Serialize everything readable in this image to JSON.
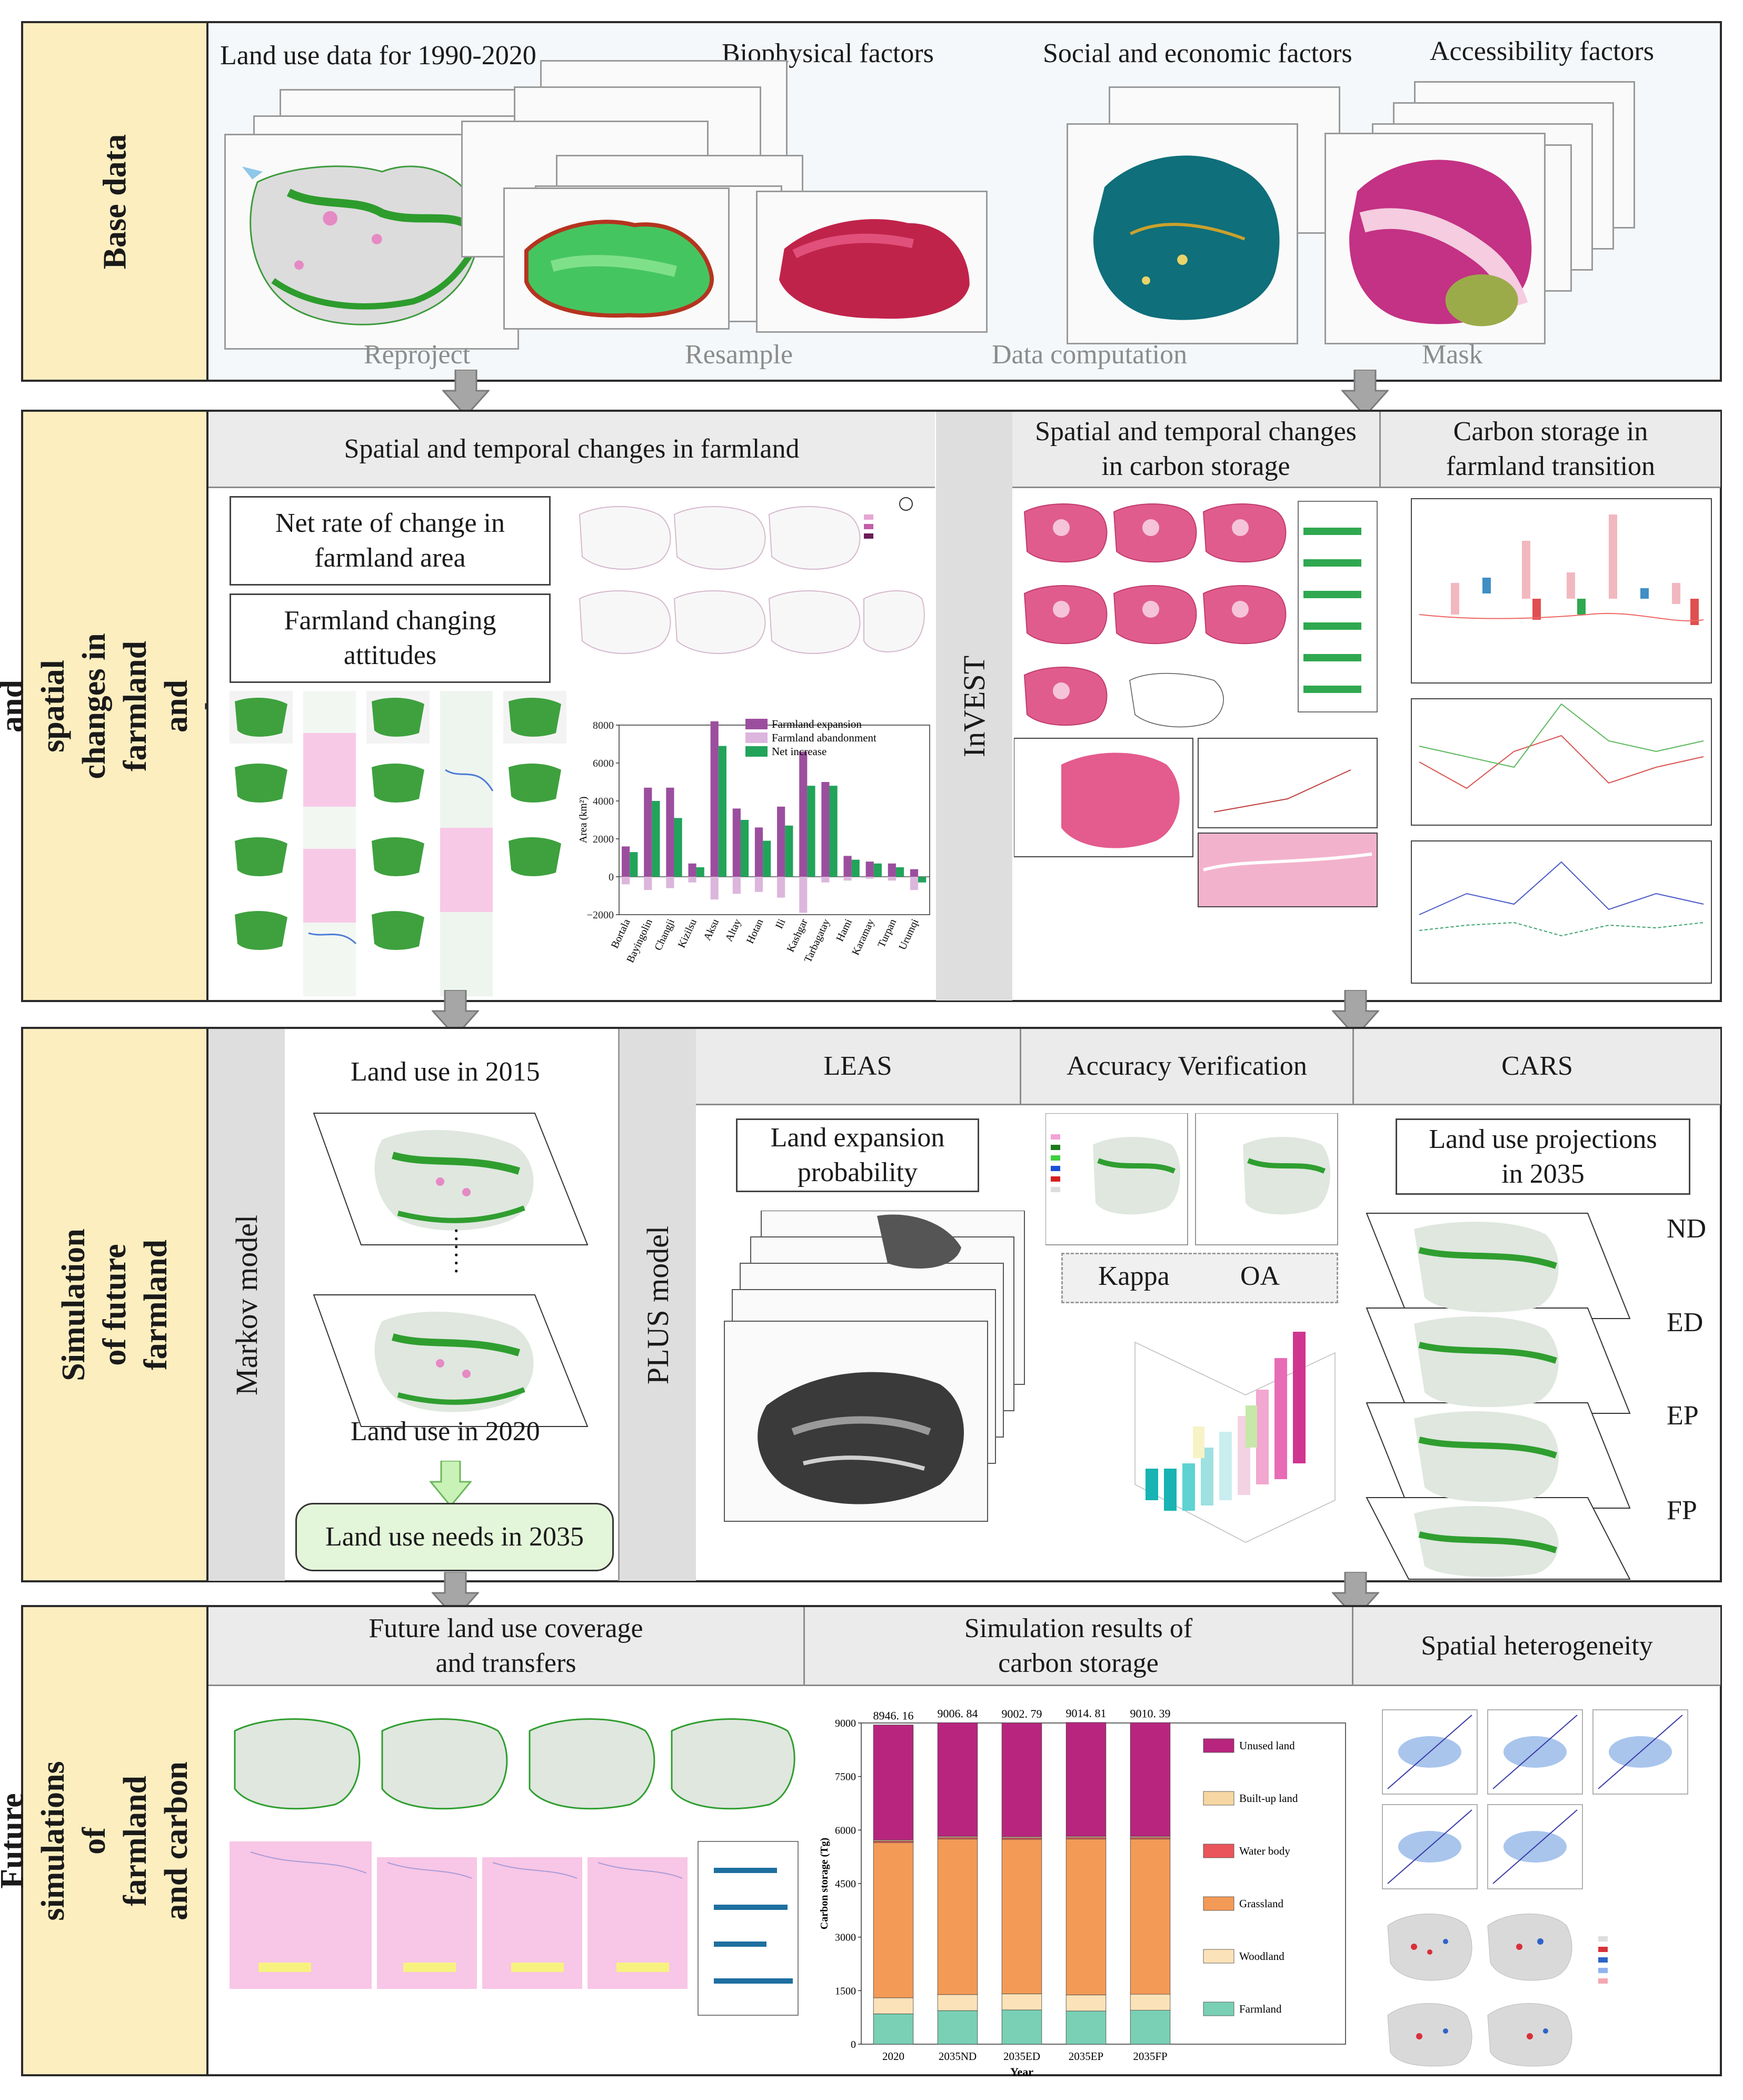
{
  "rows": {
    "r1": "Base data",
    "r2": "Temporal and\nspatial changes in\nfarmland and\ncarbon storage",
    "r3": "Simulation of future farmland",
    "r4": "Future simulations of\nfarmland and carbon storage"
  },
  "base": {
    "headers": [
      "Land use data for 1990-2020",
      "Biophysical factors",
      "Social and economic factors",
      "Accessibility factors"
    ],
    "ops": [
      "Reproject",
      "Resample",
      "Data computation",
      "Mask"
    ]
  },
  "s2": {
    "farmland_title": "Spatial and temporal changes in farmland",
    "net_rate": "Net rate of change in\nfarmland area",
    "attitudes": "Farmland changing\nattitudes",
    "invest": "InVEST",
    "carbon_title": "Spatial and temporal changes\nin carbon storage",
    "transition_title": "Carbon storage in\nfarmland transition"
  },
  "s3": {
    "markov": "Markov model",
    "lu2015": "Land use in 2015",
    "dots": "······",
    "lu2020": "Land use in 2020",
    "needs": "Land use needs in 2035",
    "plus": "PLUS model",
    "leas": "LEAS",
    "accuracy": "Accuracy Verification",
    "cars": "CARS",
    "expansion": "Land expansion\nprobability",
    "kappa": "Kappa",
    "oa": "OA",
    "projections": "Land use projections\nin 2035",
    "scenarios": [
      "ND",
      "ED",
      "EP",
      "FP"
    ]
  },
  "s4": {
    "coverage": "Future land use coverage\nand transfers",
    "simulation": "Simulation results of\ncarbon storage",
    "heterogeneity": "Spatial heterogeneity"
  },
  "colors": {
    "label_bg": "#fdeec0",
    "band_bg": "#ebebeb",
    "expansion": "#9b4e9e",
    "abandonment": "#dcb6dc",
    "net": "#22a35a"
  },
  "chart_data": [
    {
      "type": "bar",
      "title": "",
      "ylabel": "Area (km²)",
      "ylim": [
        -2000,
        8000
      ],
      "yticks": [
        "8000",
        "6000",
        "4000",
        "2000",
        "0",
        "−2000"
      ],
      "categories": [
        "Bortala",
        "Bayingolin",
        "Changji",
        "Kizilsu",
        "Aksu",
        "Altay",
        "Hotan",
        "Ili",
        "Kashgar",
        "Tarbagatay",
        "Hami",
        "Karamay",
        "Turpan",
        "Urumqi"
      ],
      "series": [
        {
          "name": "Farmland expansion",
          "values": [
            1600,
            4700,
            4700,
            700,
            8200,
            3600,
            2600,
            3700,
            6600,
            5000,
            1100,
            800,
            700,
            400
          ]
        },
        {
          "name": "Farmland abandonment",
          "values": [
            -400,
            -700,
            -600,
            -300,
            -1200,
            -900,
            -800,
            -1100,
            -1900,
            -300,
            -200,
            -100,
            -200,
            -700
          ]
        },
        {
          "name": "Net increase",
          "values": [
            1300,
            4000,
            3100,
            500,
            6900,
            3000,
            1900,
            2700,
            4800,
            4800,
            900,
            700,
            500,
            -300
          ]
        }
      ]
    },
    {
      "type": "bar",
      "stacked": true,
      "xlabel": "Year",
      "ylabel": "Carbon storage (Tg)",
      "ylim": [
        0,
        9000
      ],
      "yticks": [
        "9000",
        "7500",
        "6000",
        "4500",
        "3000",
        "1500",
        "0"
      ],
      "categories": [
        "2020",
        "2035ND",
        "2035ED",
        "2035EP",
        "2035FP"
      ],
      "totals_labels": [
        "8946. 16",
        "9006. 84",
        "9002. 79",
        "9014. 81",
        "9010. 39"
      ],
      "series": [
        {
          "name": "Farmland",
          "color": "#79d0b4",
          "values": [
            850,
            940,
            960,
            930,
            950
          ]
        },
        {
          "name": "Woodland",
          "color": "#fce2b8",
          "values": [
            450,
            450,
            450,
            450,
            450
          ]
        },
        {
          "name": "Grassland",
          "color": "#f39a57",
          "values": [
            4350,
            4360,
            4330,
            4370,
            4350
          ]
        },
        {
          "name": "Water body",
          "color": "#e9555a",
          "values": [
            40,
            40,
            40,
            40,
            40
          ]
        },
        {
          "name": "Built-up land",
          "color": "#f6d6a2",
          "values": [
            30,
            30,
            30,
            30,
            30
          ]
        },
        {
          "name": "Unused land",
          "color": "#b7257e",
          "values": [
            3226,
            3187,
            3193,
            3195,
            3190
          ]
        }
      ]
    }
  ]
}
